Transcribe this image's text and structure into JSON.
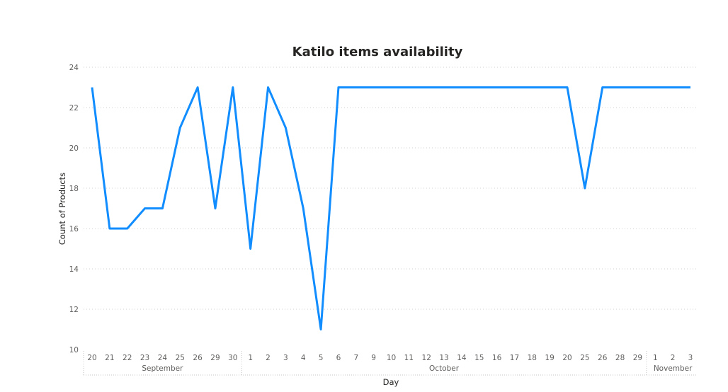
{
  "chart_data": {
    "type": "line",
    "title": "Katilo items availability",
    "xlabel": "Day",
    "ylabel": "Count of Products",
    "ylim": [
      10,
      24
    ],
    "yticks": [
      10,
      12,
      14,
      16,
      18,
      20,
      22,
      24
    ],
    "grid": true,
    "color": "#118DFF",
    "x": [
      "20",
      "21",
      "22",
      "23",
      "24",
      "25",
      "26",
      "29",
      "30",
      "1",
      "2",
      "3",
      "4",
      "5",
      "6",
      "7",
      "9",
      "10",
      "11",
      "12",
      "13",
      "14",
      "15",
      "16",
      "17",
      "18",
      "19",
      "20",
      "25",
      "26",
      "28",
      "29",
      "1",
      "2",
      "3"
    ],
    "groups": [
      {
        "label": "September",
        "count": 9
      },
      {
        "label": "October",
        "count": 23
      },
      {
        "label": "November",
        "count": 3
      }
    ],
    "series": [
      {
        "values": [
          23,
          16,
          16,
          17,
          17,
          21,
          23,
          17,
          23,
          15,
          23,
          21,
          17,
          11,
          23,
          23,
          23,
          23,
          23,
          23,
          23,
          23,
          23,
          23,
          23,
          23,
          23,
          23,
          18,
          23,
          23,
          23,
          23,
          23,
          23
        ]
      }
    ]
  }
}
